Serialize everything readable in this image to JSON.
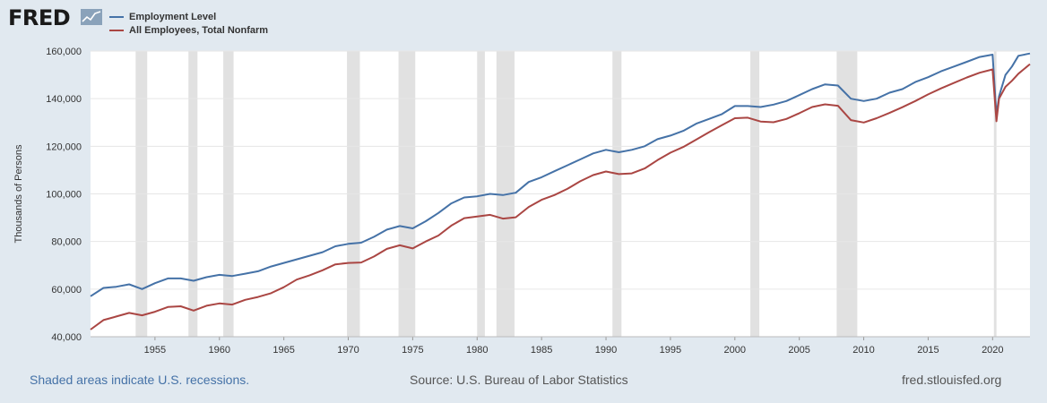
{
  "brand": {
    "name": "FRED",
    "badge_icon": "line-chart-icon"
  },
  "legend": [
    {
      "label": "Employment Level",
      "color": "#4572a7"
    },
    {
      "label": "All Employees, Total Nonfarm",
      "color": "#aa4643"
    }
  ],
  "footer": {
    "note": "Shaded areas indicate U.S. recessions.",
    "source": "Source: U.S. Bureau of Labor Statistics",
    "site": "fred.stlouisfed.org"
  },
  "chart_data": {
    "type": "line",
    "title": "",
    "xlabel": "",
    "ylabel": "Thousands of Persons",
    "xlim": [
      1950.0,
      2022.9
    ],
    "ylim": [
      40000,
      160000
    ],
    "x_ticks": [
      1955,
      1960,
      1965,
      1970,
      1975,
      1980,
      1985,
      1990,
      1995,
      2000,
      2005,
      2010,
      2015,
      2020
    ],
    "y_ticks": [
      40000,
      60000,
      80000,
      100000,
      120000,
      140000,
      160000
    ],
    "y_tick_labels": [
      "40,000",
      "60,000",
      "80,000",
      "100,000",
      "120,000",
      "140,000",
      "160,000"
    ],
    "grid": true,
    "recessions": [
      [
        1953.5,
        1954.4
      ],
      [
        1957.6,
        1958.3
      ],
      [
        1960.3,
        1961.1
      ],
      [
        1969.9,
        1970.9
      ],
      [
        1973.9,
        1975.2
      ],
      [
        1980.0,
        1980.6
      ],
      [
        1981.5,
        1982.9
      ],
      [
        1990.5,
        1991.2
      ],
      [
        2001.2,
        2001.9
      ],
      [
        2007.9,
        2009.5
      ],
      [
        2020.1,
        2020.3
      ]
    ],
    "series": [
      {
        "name": "Employment Level",
        "color": "#4572a7",
        "x": [
          1950,
          1951,
          1952,
          1953,
          1954,
          1955,
          1956,
          1957,
          1958,
          1959,
          1960,
          1961,
          1962,
          1963,
          1964,
          1965,
          1966,
          1967,
          1968,
          1969,
          1970,
          1971,
          1972,
          1973,
          1974,
          1975,
          1976,
          1977,
          1978,
          1979,
          1980,
          1981,
          1982,
          1983,
          1984,
          1985,
          1986,
          1987,
          1988,
          1989,
          1990,
          1991,
          1992,
          1993,
          1994,
          1995,
          1996,
          1997,
          1998,
          1999,
          2000,
          2001,
          2002,
          2003,
          2004,
          2005,
          2006,
          2007,
          2008,
          2009,
          2010,
          2011,
          2012,
          2013,
          2014,
          2015,
          2016,
          2017,
          2018,
          2019,
          2020.0,
          2020.3,
          2020.5,
          2021,
          2021.5,
          2022,
          2022.9
        ],
        "values": [
          57000,
          60500,
          61000,
          62000,
          60000,
          62500,
          64500,
          64500,
          63500,
          65000,
          66000,
          65500,
          66500,
          67500,
          69500,
          71000,
          72500,
          74000,
          75500,
          78000,
          79000,
          79500,
          82000,
          85000,
          86500,
          85500,
          88500,
          92000,
          96000,
          98500,
          99000,
          100000,
          99500,
          100500,
          105000,
          107000,
          109500,
          112000,
          114500,
          117000,
          118500,
          117500,
          118500,
          120000,
          123000,
          124500,
          126500,
          129500,
          131500,
          133500,
          136900,
          136900,
          136500,
          137500,
          139000,
          141500,
          144000,
          146000,
          145500,
          140000,
          139000,
          140000,
          142500,
          144000,
          147000,
          149000,
          151500,
          153500,
          155500,
          157500,
          158500,
          133000,
          141000,
          150000,
          153500,
          158000,
          159000
        ]
      },
      {
        "name": "All Employees, Total Nonfarm",
        "color": "#aa4643",
        "x": [
          1950,
          1951,
          1952,
          1953,
          1954,
          1955,
          1956,
          1957,
          1958,
          1959,
          1960,
          1961,
          1962,
          1963,
          1964,
          1965,
          1966,
          1967,
          1968,
          1969,
          1970,
          1971,
          1972,
          1973,
          1974,
          1975,
          1976,
          1977,
          1978,
          1979,
          1980,
          1981,
          1982,
          1983,
          1984,
          1985,
          1986,
          1987,
          1988,
          1989,
          1990,
          1991,
          1992,
          1993,
          1994,
          1995,
          1996,
          1997,
          1998,
          1999,
          2000,
          2001,
          2002,
          2003,
          2004,
          2005,
          2006,
          2007,
          2008,
          2009,
          2010,
          2011,
          2012,
          2013,
          2014,
          2015,
          2016,
          2017,
          2018,
          2019,
          2020.0,
          2020.3,
          2020.5,
          2021,
          2021.5,
          2022,
          2022.9
        ],
        "values": [
          43000,
          47000,
          48500,
          50000,
          49000,
          50500,
          52500,
          52800,
          51000,
          53000,
          54000,
          53500,
          55500,
          56700,
          58300,
          60800,
          64000,
          65800,
          67900,
          70400,
          71000,
          71200,
          73700,
          76900,
          78400,
          77100,
          80000,
          82500,
          86700,
          89800,
          90500,
          91200,
          89600,
          90200,
          94500,
          97500,
          99500,
          102100,
          105300,
          107900,
          109400,
          108300,
          108600,
          110700,
          114200,
          117300,
          119700,
          122800,
          125900,
          128900,
          131800,
          132000,
          130400,
          130100,
          131500,
          133900,
          136500,
          137600,
          137000,
          131000,
          130000,
          131800,
          134000,
          136400,
          139000,
          141800,
          144300,
          146600,
          148900,
          150900,
          152300,
          130500,
          140000,
          145000,
          147500,
          150500,
          154500
        ]
      }
    ]
  }
}
